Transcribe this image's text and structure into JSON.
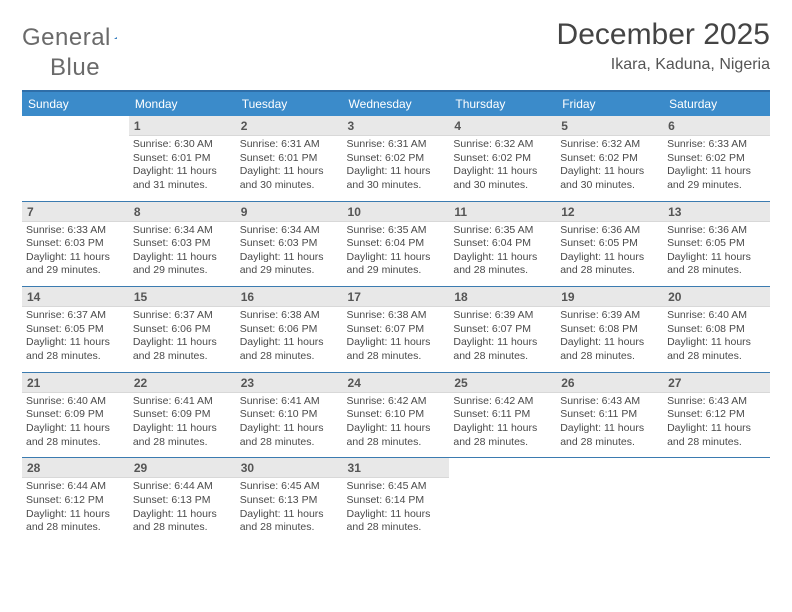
{
  "brand": {
    "word1": "General",
    "word2": "Blue"
  },
  "header": {
    "title": "December 2025",
    "location": "Ikara, Kaduna, Nigeria"
  },
  "colors": {
    "header_bg": "#3b8bca",
    "rule": "#2f6ea8",
    "daynum_bg": "#e8e8e8"
  },
  "weekdays": [
    "Sunday",
    "Monday",
    "Tuesday",
    "Wednesday",
    "Thursday",
    "Friday",
    "Saturday"
  ],
  "start_offset": 1,
  "days": [
    {
      "n": 1,
      "sunrise": "6:30 AM",
      "sunset": "6:01 PM",
      "daylight": "11 hours and 31 minutes."
    },
    {
      "n": 2,
      "sunrise": "6:31 AM",
      "sunset": "6:01 PM",
      "daylight": "11 hours and 30 minutes."
    },
    {
      "n": 3,
      "sunrise": "6:31 AM",
      "sunset": "6:02 PM",
      "daylight": "11 hours and 30 minutes."
    },
    {
      "n": 4,
      "sunrise": "6:32 AM",
      "sunset": "6:02 PM",
      "daylight": "11 hours and 30 minutes."
    },
    {
      "n": 5,
      "sunrise": "6:32 AM",
      "sunset": "6:02 PM",
      "daylight": "11 hours and 30 minutes."
    },
    {
      "n": 6,
      "sunrise": "6:33 AM",
      "sunset": "6:02 PM",
      "daylight": "11 hours and 29 minutes."
    },
    {
      "n": 7,
      "sunrise": "6:33 AM",
      "sunset": "6:03 PM",
      "daylight": "11 hours and 29 minutes."
    },
    {
      "n": 8,
      "sunrise": "6:34 AM",
      "sunset": "6:03 PM",
      "daylight": "11 hours and 29 minutes."
    },
    {
      "n": 9,
      "sunrise": "6:34 AM",
      "sunset": "6:03 PM",
      "daylight": "11 hours and 29 minutes."
    },
    {
      "n": 10,
      "sunrise": "6:35 AM",
      "sunset": "6:04 PM",
      "daylight": "11 hours and 29 minutes."
    },
    {
      "n": 11,
      "sunrise": "6:35 AM",
      "sunset": "6:04 PM",
      "daylight": "11 hours and 28 minutes."
    },
    {
      "n": 12,
      "sunrise": "6:36 AM",
      "sunset": "6:05 PM",
      "daylight": "11 hours and 28 minutes."
    },
    {
      "n": 13,
      "sunrise": "6:36 AM",
      "sunset": "6:05 PM",
      "daylight": "11 hours and 28 minutes."
    },
    {
      "n": 14,
      "sunrise": "6:37 AM",
      "sunset": "6:05 PM",
      "daylight": "11 hours and 28 minutes."
    },
    {
      "n": 15,
      "sunrise": "6:37 AM",
      "sunset": "6:06 PM",
      "daylight": "11 hours and 28 minutes."
    },
    {
      "n": 16,
      "sunrise": "6:38 AM",
      "sunset": "6:06 PM",
      "daylight": "11 hours and 28 minutes."
    },
    {
      "n": 17,
      "sunrise": "6:38 AM",
      "sunset": "6:07 PM",
      "daylight": "11 hours and 28 minutes."
    },
    {
      "n": 18,
      "sunrise": "6:39 AM",
      "sunset": "6:07 PM",
      "daylight": "11 hours and 28 minutes."
    },
    {
      "n": 19,
      "sunrise": "6:39 AM",
      "sunset": "6:08 PM",
      "daylight": "11 hours and 28 minutes."
    },
    {
      "n": 20,
      "sunrise": "6:40 AM",
      "sunset": "6:08 PM",
      "daylight": "11 hours and 28 minutes."
    },
    {
      "n": 21,
      "sunrise": "6:40 AM",
      "sunset": "6:09 PM",
      "daylight": "11 hours and 28 minutes."
    },
    {
      "n": 22,
      "sunrise": "6:41 AM",
      "sunset": "6:09 PM",
      "daylight": "11 hours and 28 minutes."
    },
    {
      "n": 23,
      "sunrise": "6:41 AM",
      "sunset": "6:10 PM",
      "daylight": "11 hours and 28 minutes."
    },
    {
      "n": 24,
      "sunrise": "6:42 AM",
      "sunset": "6:10 PM",
      "daylight": "11 hours and 28 minutes."
    },
    {
      "n": 25,
      "sunrise": "6:42 AM",
      "sunset": "6:11 PM",
      "daylight": "11 hours and 28 minutes."
    },
    {
      "n": 26,
      "sunrise": "6:43 AM",
      "sunset": "6:11 PM",
      "daylight": "11 hours and 28 minutes."
    },
    {
      "n": 27,
      "sunrise": "6:43 AM",
      "sunset": "6:12 PM",
      "daylight": "11 hours and 28 minutes."
    },
    {
      "n": 28,
      "sunrise": "6:44 AM",
      "sunset": "6:12 PM",
      "daylight": "11 hours and 28 minutes."
    },
    {
      "n": 29,
      "sunrise": "6:44 AM",
      "sunset": "6:13 PM",
      "daylight": "11 hours and 28 minutes."
    },
    {
      "n": 30,
      "sunrise": "6:45 AM",
      "sunset": "6:13 PM",
      "daylight": "11 hours and 28 minutes."
    },
    {
      "n": 31,
      "sunrise": "6:45 AM",
      "sunset": "6:14 PM",
      "daylight": "11 hours and 28 minutes."
    }
  ],
  "labels": {
    "sunrise": "Sunrise:",
    "sunset": "Sunset:",
    "daylight": "Daylight:"
  }
}
